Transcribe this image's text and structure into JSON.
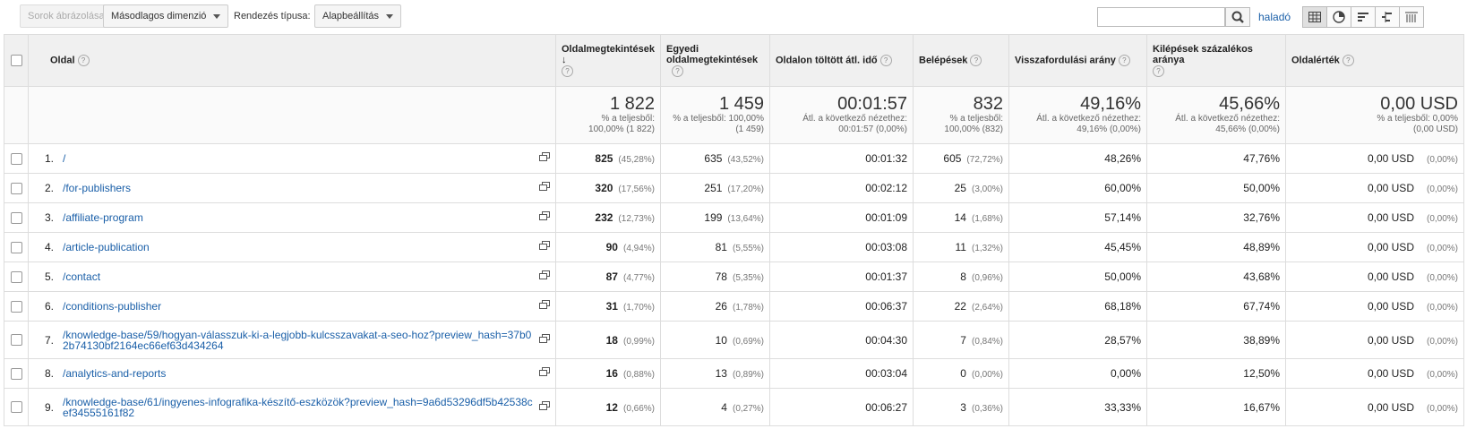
{
  "toolbar": {
    "plot_rows": "Sorok ábrázolása",
    "secondary_dimension": "Másodlagos dimenzió",
    "sort_type_label": "Rendezés típusa:",
    "sort_type_value": "Alapbeállítás",
    "search_value": "",
    "advanced": "haladó"
  },
  "headers": {
    "page": "Oldal",
    "pageviews": "Oldalmegtekintések",
    "unique_pageviews": "Egyedi oldalmegtekintések",
    "avg_time": "Oldalon töltött átl. idő",
    "entrances": "Belépések",
    "bounce_rate": "Visszafordulási arány",
    "exit_pct": "Kilépések százalékos aránya",
    "page_value": "Oldalérték"
  },
  "totals": {
    "pageviews": {
      "value": "1 822",
      "sub1": "% a teljesből:",
      "sub2": "100,00% (1 822)"
    },
    "unique_pageviews": {
      "value": "1 459",
      "sub1": "% a teljesből: 100,00%",
      "sub2": "(1 459)"
    },
    "avg_time": {
      "value": "00:01:57",
      "sub1": "Átl. a következő nézethez:",
      "sub2": "00:01:57 (0,00%)"
    },
    "entrances": {
      "value": "832",
      "sub1": "% a teljesből:",
      "sub2": "100,00% (832)"
    },
    "bounce_rate": {
      "value": "49,16%",
      "sub1": "Átl. a következő nézethez:",
      "sub2": "49,16% (0,00%)"
    },
    "exit_pct": {
      "value": "45,66%",
      "sub1": "Átl. a következő nézethez:",
      "sub2": "45,66% (0,00%)"
    },
    "page_value": {
      "value": "0,00 USD",
      "sub1": "% a teljesből: 0,00%",
      "sub2": "(0,00 USD)"
    }
  },
  "rows": [
    {
      "idx": "1.",
      "page": "/",
      "pv": "825",
      "pv_pct": "(45,28%)",
      "upv": "635",
      "upv_pct": "(43,52%)",
      "time": "00:01:32",
      "ent": "605",
      "ent_pct": "(72,72%)",
      "bounce": "48,26%",
      "exit": "47,76%",
      "val": "0,00 USD",
      "val_pct": "(0,00%)"
    },
    {
      "idx": "2.",
      "page": "/for-publishers",
      "pv": "320",
      "pv_pct": "(17,56%)",
      "upv": "251",
      "upv_pct": "(17,20%)",
      "time": "00:02:12",
      "ent": "25",
      "ent_pct": "(3,00%)",
      "bounce": "60,00%",
      "exit": "50,00%",
      "val": "0,00 USD",
      "val_pct": "(0,00%)"
    },
    {
      "idx": "3.",
      "page": "/affiliate-program",
      "pv": "232",
      "pv_pct": "(12,73%)",
      "upv": "199",
      "upv_pct": "(13,64%)",
      "time": "00:01:09",
      "ent": "14",
      "ent_pct": "(1,68%)",
      "bounce": "57,14%",
      "exit": "32,76%",
      "val": "0,00 USD",
      "val_pct": "(0,00%)"
    },
    {
      "idx": "4.",
      "page": "/article-publication",
      "pv": "90",
      "pv_pct": "(4,94%)",
      "upv": "81",
      "upv_pct": "(5,55%)",
      "time": "00:03:08",
      "ent": "11",
      "ent_pct": "(1,32%)",
      "bounce": "45,45%",
      "exit": "48,89%",
      "val": "0,00 USD",
      "val_pct": "(0,00%)"
    },
    {
      "idx": "5.",
      "page": "/contact",
      "pv": "87",
      "pv_pct": "(4,77%)",
      "upv": "78",
      "upv_pct": "(5,35%)",
      "time": "00:01:37",
      "ent": "8",
      "ent_pct": "(0,96%)",
      "bounce": "50,00%",
      "exit": "43,68%",
      "val": "0,00 USD",
      "val_pct": "(0,00%)"
    },
    {
      "idx": "6.",
      "page": "/conditions-publisher",
      "pv": "31",
      "pv_pct": "(1,70%)",
      "upv": "26",
      "upv_pct": "(1,78%)",
      "time": "00:06:37",
      "ent": "22",
      "ent_pct": "(2,64%)",
      "bounce": "68,18%",
      "exit": "67,74%",
      "val": "0,00 USD",
      "val_pct": "(0,00%)"
    },
    {
      "idx": "7.",
      "page": "/knowledge-base/59/hogyan-válasszuk-ki-a-legjobb-kulcsszavakat-a-seo-hoz?preview_hash=37b02b74130bf2164ec66ef63d434264",
      "pv": "18",
      "pv_pct": "(0,99%)",
      "upv": "10",
      "upv_pct": "(0,69%)",
      "time": "00:04:30",
      "ent": "7",
      "ent_pct": "(0,84%)",
      "bounce": "28,57%",
      "exit": "38,89%",
      "val": "0,00 USD",
      "val_pct": "(0,00%)"
    },
    {
      "idx": "8.",
      "page": "/analytics-and-reports",
      "pv": "16",
      "pv_pct": "(0,88%)",
      "upv": "13",
      "upv_pct": "(0,89%)",
      "time": "00:03:04",
      "ent": "0",
      "ent_pct": "(0,00%)",
      "bounce": "0,00%",
      "exit": "12,50%",
      "val": "0,00 USD",
      "val_pct": "(0,00%)"
    },
    {
      "idx": "9.",
      "page": "/knowledge-base/61/ingyenes-infografika-készítő-eszközök?preview_hash=9a6d53296df5b42538cef34555161f82",
      "pv": "12",
      "pv_pct": "(0,66%)",
      "upv": "4",
      "upv_pct": "(0,27%)",
      "time": "00:06:27",
      "ent": "3",
      "ent_pct": "(0,36%)",
      "bounce": "33,33%",
      "exit": "16,67%",
      "val": "0,00 USD",
      "val_pct": "(0,00%)"
    }
  ]
}
